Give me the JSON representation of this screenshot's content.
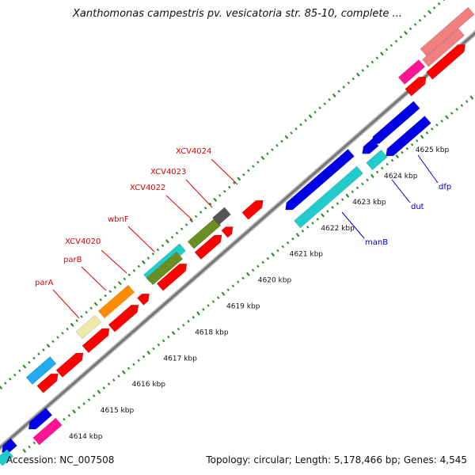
{
  "title": "Xanthomonas campestris pv. vesicatoria str. 85-10, complete ...",
  "footer": {
    "accession": "Accession: NC_007508",
    "stats": "Topology: circular; Length: 5,178,466 bp; Genes: 4,545"
  },
  "colors": {
    "backbone": "#888888",
    "ticks": "#2a8a2a",
    "gene_red": "#ff0000",
    "label_red": "#e00000",
    "label_blue": "#0000cc",
    "blue_gene": "#0000e6",
    "cyan_gene": "#22cccc",
    "olive_gene": "#6b8e23",
    "orange_gene": "#ff8c00",
    "khaki_gene": "#eee8aa",
    "skyblue_gene": "#22aaee",
    "magenta_gene": "#ff1493",
    "salmon_gene": "#f08080",
    "gray_gene": "#555555"
  },
  "scale_labels": [
    "4614 kbp",
    "4615 kbp",
    "4616 kbp",
    "4617 kbp",
    "4618 kbp",
    "4619 kbp",
    "4620 kbp",
    "4621 kbp",
    "4622 kbp",
    "4623 kbp",
    "4624 kbp",
    "4625 kbp"
  ],
  "gene_labels_outer": [
    "parA",
    "parB",
    "XCV4020",
    "wbnF",
    "XCV4022",
    "XCV4023",
    "XCV4024"
  ],
  "gene_labels_inner": [
    "manB",
    "dut",
    "dfp"
  ]
}
